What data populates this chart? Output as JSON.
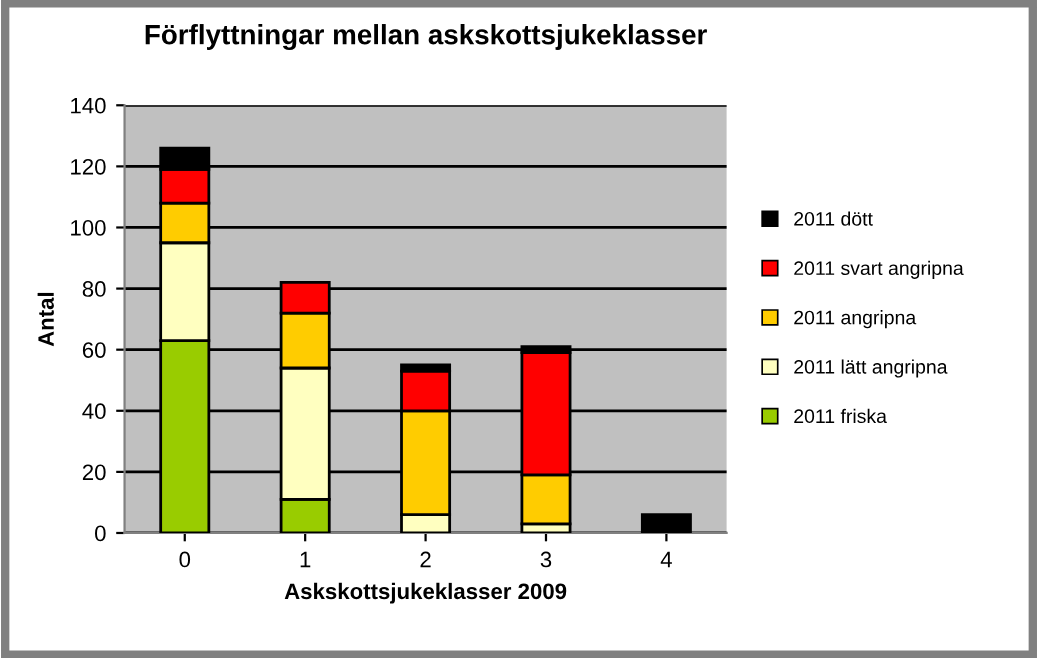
{
  "chart_data": {
    "type": "bar",
    "stacked": true,
    "title": "Förflyttningar mellan askskottsjukeklasser",
    "xlabel": "Askskottsjukeklasser 2009",
    "ylabel": "Antal",
    "categories": [
      "0",
      "1",
      "2",
      "3",
      "4"
    ],
    "series": [
      {
        "name": "2011 friska",
        "color": "#99cc00",
        "values": [
          63,
          11,
          0,
          0,
          0
        ]
      },
      {
        "name": "2011 lätt angripna",
        "color": "#ffffc0",
        "values": [
          32,
          43,
          6,
          3,
          0
        ]
      },
      {
        "name": "2011 angripna",
        "color": "#ffcc00",
        "values": [
          13,
          18,
          34,
          16,
          0
        ]
      },
      {
        "name": "2011 svart angripna",
        "color": "#ff0000",
        "values": [
          11,
          10,
          13,
          40,
          0
        ]
      },
      {
        "name": "2011 dött",
        "color": "#000000",
        "values": [
          7,
          0,
          2,
          2,
          6
        ]
      }
    ],
    "ylim": [
      0,
      140
    ],
    "yticks": [
      0,
      20,
      40,
      60,
      80,
      100,
      120,
      140
    ],
    "grid": "y",
    "legend": "right"
  }
}
